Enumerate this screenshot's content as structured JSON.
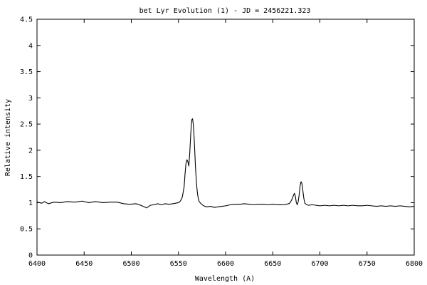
{
  "chart_data": {
    "type": "line",
    "title": "bet Lyr Evolution (1) - JD = 2456221.323",
    "xlabel": "Wavelength (A)",
    "ylabel": "Relative intensity",
    "xlim": [
      6400,
      6800
    ],
    "ylim": [
      0,
      4.5
    ],
    "x_ticks": [
      6400,
      6450,
      6500,
      6550,
      6600,
      6650,
      6700,
      6750,
      6800
    ],
    "x_tick_labels": [
      "6400",
      "6450",
      "6500",
      "6550",
      "6600",
      "6650",
      "6700",
      "6750",
      "6800"
    ],
    "y_ticks": [
      0,
      0.5,
      1,
      1.5,
      2,
      2.5,
      3,
      3.5,
      4,
      4.5
    ],
    "y_tick_labels": [
      "0",
      "0.5",
      "1",
      "1.5",
      "2",
      "2.5",
      "3",
      "3.5",
      "4",
      "4.5"
    ],
    "grid": false,
    "legend": "none",
    "line_color": "#000000",
    "series": [
      {
        "x": [
          6400,
          6405,
          6408,
          6412,
          6418,
          6425,
          6432,
          6440,
          6448,
          6455,
          6462,
          6470,
          6478,
          6485,
          6492,
          6498,
          6505,
          6510,
          6514,
          6516,
          6518,
          6520,
          6524,
          6528,
          6532,
          6536,
          6540,
          6544,
          6547,
          6550,
          6552,
          6554,
          6556,
          6557,
          6558,
          6559,
          6560,
          6561,
          6562,
          6563,
          6564,
          6565,
          6566,
          6567,
          6568,
          6569,
          6570,
          6571,
          6572,
          6574,
          6576,
          6578,
          6580,
          6584,
          6588,
          6592,
          6596,
          6600,
          6605,
          6610,
          6615,
          6620,
          6625,
          6630,
          6635,
          6640,
          6645,
          6650,
          6655,
          6660,
          6665,
          6668,
          6670,
          6672,
          6673,
          6674,
          6675,
          6676,
          6677,
          6678,
          6679,
          6680,
          6681,
          6682,
          6683,
          6684,
          6686,
          6688,
          6692,
          6696,
          6700,
          6705,
          6710,
          6715,
          6720,
          6725,
          6730,
          6735,
          6740,
          6745,
          6750,
          6755,
          6760,
          6765,
          6770,
          6775,
          6780,
          6785,
          6790,
          6795,
          6800
        ],
        "y": [
          1.01,
          0.99,
          1.02,
          0.98,
          1.01,
          1.0,
          1.02,
          1.01,
          1.03,
          1.0,
          1.02,
          1.0,
          1.01,
          1.01,
          0.98,
          0.97,
          0.98,
          0.95,
          0.92,
          0.9,
          0.92,
          0.95,
          0.96,
          0.98,
          0.96,
          0.98,
          0.97,
          0.98,
          0.99,
          1.0,
          1.03,
          1.1,
          1.3,
          1.55,
          1.75,
          1.82,
          1.78,
          1.7,
          1.95,
          2.3,
          2.58,
          2.6,
          2.45,
          2.1,
          1.7,
          1.4,
          1.2,
          1.08,
          1.02,
          0.98,
          0.95,
          0.93,
          0.92,
          0.93,
          0.91,
          0.92,
          0.93,
          0.94,
          0.96,
          0.97,
          0.97,
          0.98,
          0.97,
          0.96,
          0.97,
          0.97,
          0.96,
          0.97,
          0.96,
          0.96,
          0.97,
          0.99,
          1.05,
          1.14,
          1.18,
          1.12,
          1.0,
          0.96,
          1.02,
          1.15,
          1.32,
          1.4,
          1.36,
          1.22,
          1.08,
          0.99,
          0.96,
          0.95,
          0.96,
          0.95,
          0.94,
          0.95,
          0.94,
          0.95,
          0.94,
          0.95,
          0.94,
          0.95,
          0.94,
          0.94,
          0.95,
          0.94,
          0.93,
          0.94,
          0.93,
          0.94,
          0.93,
          0.94,
          0.93,
          0.92,
          0.93
        ]
      }
    ]
  }
}
